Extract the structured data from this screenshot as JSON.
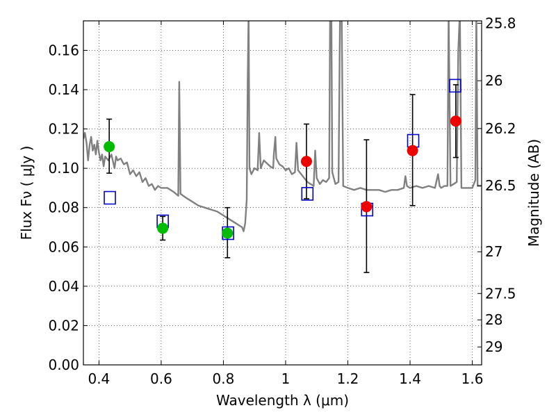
{
  "chart_data": {
    "type": "scatter",
    "title": "",
    "xlabel": "Wavelength  λ (μm)",
    "ylabel": "Flux  Fν  ( μJy )",
    "y2label": "Magnitude (AB)",
    "xlim": [
      0.35,
      1.63
    ],
    "ylim": [
      0.0,
      0.175
    ],
    "grid": true,
    "x_ticks": [
      {
        "value": 0.4,
        "label": "0.4"
      },
      {
        "value": 0.6,
        "label": "0.6"
      },
      {
        "value": 0.8,
        "label": "0.8"
      },
      {
        "value": 1.0,
        "label": "1"
      },
      {
        "value": 1.2,
        "label": "1.2"
      },
      {
        "value": 1.4,
        "label": "1.4"
      },
      {
        "value": 1.6,
        "label": "1.6"
      }
    ],
    "y_ticks": [
      {
        "value": 0.0,
        "label": "0.00"
      },
      {
        "value": 0.02,
        "label": "0.02"
      },
      {
        "value": 0.04,
        "label": "0.04"
      },
      {
        "value": 0.06,
        "label": "0.06"
      },
      {
        "value": 0.08,
        "label": "0.08"
      },
      {
        "value": 0.1,
        "label": "0.10"
      },
      {
        "value": 0.12,
        "label": "0.12"
      },
      {
        "value": 0.14,
        "label": "0.14"
      },
      {
        "value": 0.16,
        "label": "0.16"
      }
    ],
    "y2_ticks": [
      {
        "value": 25.8,
        "label": "25.8"
      },
      {
        "value": 26.0,
        "label": "26"
      },
      {
        "value": 26.2,
        "label": "26.2"
      },
      {
        "value": 26.5,
        "label": "26.5"
      },
      {
        "value": 27.0,
        "label": "27"
      },
      {
        "value": 27.5,
        "label": "27.5"
      },
      {
        "value": 28.0,
        "label": "28"
      },
      {
        "value": 29.0,
        "label": "29"
      }
    ],
    "series": [
      {
        "kind": "line",
        "color": "#808080",
        "points": [
          [
            0.35,
            0.115
          ],
          [
            0.355,
            0.118
          ],
          [
            0.36,
            0.113
          ],
          [
            0.365,
            0.104
          ],
          [
            0.37,
            0.112
          ],
          [
            0.375,
            0.116
          ],
          [
            0.38,
            0.109
          ],
          [
            0.385,
            0.112
          ],
          [
            0.39,
            0.107
          ],
          [
            0.395,
            0.114
          ],
          [
            0.4,
            0.108
          ],
          [
            0.405,
            0.104
          ],
          [
            0.41,
            0.107
          ],
          [
            0.415,
            0.101
          ],
          [
            0.42,
            0.106
          ],
          [
            0.43,
            0.104
          ],
          [
            0.44,
            0.107
          ],
          [
            0.45,
            0.1
          ],
          [
            0.455,
            0.106
          ],
          [
            0.46,
            0.104
          ],
          [
            0.47,
            0.105
          ],
          [
            0.48,
            0.102
          ],
          [
            0.49,
            0.103
          ],
          [
            0.5,
            0.097
          ],
          [
            0.51,
            0.099
          ],
          [
            0.52,
            0.096
          ],
          [
            0.53,
            0.098
          ],
          [
            0.54,
            0.093
          ],
          [
            0.55,
            0.095
          ],
          [
            0.56,
            0.091
          ],
          [
            0.57,
            0.092
          ],
          [
            0.58,
            0.089
          ],
          [
            0.59,
            0.091
          ],
          [
            0.6,
            0.09
          ],
          [
            0.62,
            0.09
          ],
          [
            0.64,
            0.088
          ],
          [
            0.655,
            0.086
          ],
          [
            0.658,
            0.144
          ],
          [
            0.662,
            0.087
          ],
          [
            0.68,
            0.085
          ],
          [
            0.7,
            0.083
          ],
          [
            0.72,
            0.081
          ],
          [
            0.74,
            0.08
          ],
          [
            0.76,
            0.079
          ],
          [
            0.78,
            0.078
          ],
          [
            0.8,
            0.076
          ],
          [
            0.82,
            0.074
          ],
          [
            0.84,
            0.072
          ],
          [
            0.86,
            0.07
          ],
          [
            0.865,
            0.068
          ],
          [
            0.87,
            0.072
          ],
          [
            0.875,
            0.084
          ],
          [
            0.878,
            0.145
          ],
          [
            0.881,
            0.18
          ],
          [
            0.884,
            0.1
          ],
          [
            0.89,
            0.097
          ],
          [
            0.9,
            0.1
          ],
          [
            0.91,
            0.099
          ],
          [
            0.915,
            0.118
          ],
          [
            0.92,
            0.1
          ],
          [
            0.93,
            0.104
          ],
          [
            0.95,
            0.101
          ],
          [
            0.96,
            0.1
          ],
          [
            0.962,
            0.107
          ],
          [
            0.967,
            0.116
          ],
          [
            0.97,
            0.105
          ],
          [
            0.98,
            0.102
          ],
          [
            0.99,
            0.101
          ],
          [
            1.0,
            0.099
          ],
          [
            1.01,
            0.1
          ],
          [
            1.02,
            0.097
          ],
          [
            1.03,
            0.098
          ],
          [
            1.035,
            0.113
          ],
          [
            1.04,
            0.099
          ],
          [
            1.05,
            0.097
          ],
          [
            1.06,
            0.095
          ],
          [
            1.07,
            0.093
          ],
          [
            1.08,
            0.092
          ],
          [
            1.09,
            0.091
          ],
          [
            1.095,
            0.109
          ],
          [
            1.1,
            0.095
          ],
          [
            1.11,
            0.092
          ],
          [
            1.12,
            0.094
          ],
          [
            1.13,
            0.093
          ],
          [
            1.14,
            0.095
          ],
          [
            1.143,
            0.18
          ],
          [
            1.147,
            0.18
          ],
          [
            1.15,
            0.098
          ],
          [
            1.16,
            0.092
          ],
          [
            1.17,
            0.093
          ],
          [
            1.175,
            0.18
          ],
          [
            1.18,
            0.18
          ],
          [
            1.185,
            0.091
          ],
          [
            1.2,
            0.09
          ],
          [
            1.22,
            0.089
          ],
          [
            1.24,
            0.09
          ],
          [
            1.26,
            0.089
          ],
          [
            1.28,
            0.089
          ],
          [
            1.3,
            0.089
          ],
          [
            1.32,
            0.088
          ],
          [
            1.34,
            0.089
          ],
          [
            1.36,
            0.089
          ],
          [
            1.38,
            0.09
          ],
          [
            1.385,
            0.096
          ],
          [
            1.39,
            0.091
          ],
          [
            1.4,
            0.09
          ],
          [
            1.42,
            0.091
          ],
          [
            1.44,
            0.09
          ],
          [
            1.46,
            0.091
          ],
          [
            1.48,
            0.09
          ],
          [
            1.49,
            0.097
          ],
          [
            1.495,
            0.091
          ],
          [
            1.5,
            0.09
          ],
          [
            1.51,
            0.091
          ],
          [
            1.52,
            0.091
          ],
          [
            1.524,
            0.18
          ],
          [
            1.53,
            0.091
          ],
          [
            1.54,
            0.092
          ],
          [
            1.55,
            0.093
          ],
          [
            1.555,
            0.16
          ],
          [
            1.56,
            0.18
          ],
          [
            1.565,
            0.09
          ],
          [
            1.58,
            0.09
          ],
          [
            1.6,
            0.09
          ],
          [
            1.61,
            0.094
          ],
          [
            1.613,
            0.18
          ],
          [
            1.617,
            0.091
          ],
          [
            1.63,
            0.091
          ]
        ]
      },
      {
        "kind": "squares",
        "color": "#0000cc",
        "points": [
          [
            0.435,
            0.085
          ],
          [
            0.605,
            0.073
          ],
          [
            0.815,
            0.067
          ],
          [
            1.07,
            0.087
          ],
          [
            1.262,
            0.079
          ],
          [
            1.41,
            0.114
          ],
          [
            1.545,
            0.142
          ]
        ]
      },
      {
        "kind": "points",
        "color": "#00bb00",
        "points": [
          {
            "x": 0.433,
            "y": 0.111,
            "err_low": 0.0975,
            "err_high": 0.125
          },
          {
            "x": 0.605,
            "y": 0.0695,
            "err_low": 0.0635,
            "err_high": 0.0755
          },
          {
            "x": 0.813,
            "y": 0.067,
            "err_low": 0.0545,
            "err_high": 0.08
          }
        ]
      },
      {
        "kind": "points",
        "color": "#ee0000",
        "points": [
          {
            "x": 1.067,
            "y": 0.1035,
            "err_low": 0.0845,
            "err_high": 0.1225
          },
          {
            "x": 1.26,
            "y": 0.0805,
            "err_low": 0.047,
            "err_high": 0.1145
          },
          {
            "x": 1.408,
            "y": 0.109,
            "err_low": 0.081,
            "err_high": 0.1375
          },
          {
            "x": 1.547,
            "y": 0.124,
            "err_low": 0.1055,
            "err_high": 0.1425
          }
        ]
      }
    ]
  }
}
